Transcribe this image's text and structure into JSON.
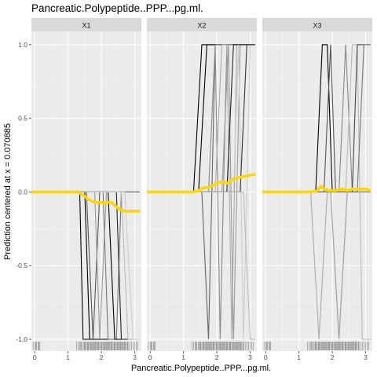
{
  "chart_data": {
    "type": "line",
    "title": "Pancreatic.Polypeptide..PPP...pg.ml.",
    "xlabel": "Pancreatic.Polypeptide..PPP...pg.ml.",
    "ylabel": "Prediction centered at x = 0.070885",
    "xlim": [
      -0.1,
      3.2
    ],
    "ylim": [
      -1.08,
      1.09
    ],
    "x_ticks": [
      0,
      1,
      2,
      3
    ],
    "y_ticks": [
      1.0,
      0.5,
      0.0,
      -0.5,
      -1.0
    ],
    "y_tick_labels": [
      "1.0",
      "0.5",
      "0.0",
      "-0.5",
      "-1.0"
    ],
    "grid": true,
    "panels": [
      {
        "label": "X1",
        "ice_lines": [
          {
            "points": [
              [
                -0.1,
                0
              ],
              [
                1.35,
                0
              ],
              [
                1.45,
                -1
              ],
              [
                3.15,
                -1
              ]
            ],
            "shade": "#000000"
          },
          {
            "points": [
              [
                -0.1,
                0
              ],
              [
                1.5,
                0
              ],
              [
                1.65,
                -1
              ],
              [
                3.15,
                -1
              ]
            ],
            "shade": "#000000"
          },
          {
            "points": [
              [
                -0.1,
                0
              ],
              [
                1.55,
                0
              ],
              [
                1.75,
                -1
              ],
              [
                1.95,
                0
              ],
              [
                3.15,
                0
              ]
            ],
            "shade": "#555555"
          },
          {
            "points": [
              [
                -0.1,
                0
              ],
              [
                1.8,
                0
              ],
              [
                1.95,
                -1
              ],
              [
                2.15,
                0
              ],
              [
                3.15,
                0
              ]
            ],
            "shade": "#999999"
          },
          {
            "points": [
              [
                -0.1,
                0
              ],
              [
                2.05,
                0
              ],
              [
                2.2,
                -1
              ],
              [
                2.45,
                -1
              ],
              [
                2.6,
                0
              ],
              [
                3.15,
                0
              ]
            ],
            "shade": "#777777"
          },
          {
            "points": [
              [
                -0.1,
                0
              ],
              [
                2.2,
                0
              ],
              [
                2.4,
                -1
              ],
              [
                3.15,
                -1
              ]
            ],
            "shade": "#000000"
          },
          {
            "points": [
              [
                -0.1,
                0
              ],
              [
                2.45,
                0
              ],
              [
                2.6,
                -1
              ],
              [
                3.15,
                -1
              ]
            ],
            "shade": "#222222"
          },
          {
            "points": [
              [
                -0.1,
                0
              ],
              [
                2.6,
                0
              ],
              [
                2.8,
                -1
              ],
              [
                3.15,
                -1
              ]
            ],
            "shade": "#bbbbbb"
          },
          {
            "points": [
              [
                -0.1,
                0
              ],
              [
                2.7,
                0
              ],
              [
                2.95,
                -1
              ],
              [
                3.15,
                -1
              ]
            ],
            "shade": "#cccccc"
          }
        ],
        "pdp": [
          [
            -0.1,
            0
          ],
          [
            1.3,
            0
          ],
          [
            1.45,
            -0.02
          ],
          [
            1.6,
            -0.05
          ],
          [
            1.8,
            -0.07
          ],
          [
            2.0,
            -0.07
          ],
          [
            2.1,
            -0.08
          ],
          [
            2.2,
            -0.07
          ],
          [
            2.3,
            -0.07
          ],
          [
            2.4,
            -0.09
          ],
          [
            2.55,
            -0.12
          ],
          [
            2.7,
            -0.13
          ],
          [
            3.15,
            -0.13
          ]
        ]
      },
      {
        "label": "X2",
        "ice_lines": [
          {
            "points": [
              [
                -0.1,
                0
              ],
              [
                1.3,
                0
              ],
              [
                1.55,
                1
              ],
              [
                3.15,
                1
              ]
            ],
            "shade": "#000000"
          },
          {
            "points": [
              [
                -0.1,
                0
              ],
              [
                1.45,
                0
              ],
              [
                1.7,
                1
              ],
              [
                3.15,
                1
              ]
            ],
            "shade": "#000000"
          },
          {
            "points": [
              [
                -0.1,
                0
              ],
              [
                1.55,
                0
              ],
              [
                1.75,
                -1
              ],
              [
                1.95,
                1
              ],
              [
                3.15,
                1
              ]
            ],
            "shade": "#666666"
          },
          {
            "points": [
              [
                -0.1,
                0
              ],
              [
                1.75,
                0
              ],
              [
                1.95,
                1
              ],
              [
                2.1,
                -1
              ],
              [
                2.3,
                1
              ],
              [
                3.15,
                1
              ]
            ],
            "shade": "#888888"
          },
          {
            "points": [
              [
                -0.1,
                0
              ],
              [
                1.95,
                0
              ],
              [
                2.15,
                1
              ],
              [
                2.3,
                1
              ],
              [
                2.45,
                -1
              ],
              [
                2.6,
                1
              ],
              [
                3.15,
                1
              ]
            ],
            "shade": "#aaaaaa"
          },
          {
            "points": [
              [
                -0.1,
                0
              ],
              [
                2.15,
                0
              ],
              [
                2.35,
                1
              ],
              [
                2.5,
                -1
              ],
              [
                2.7,
                1
              ],
              [
                3.15,
                1
              ]
            ],
            "shade": "#999999"
          },
          {
            "points": [
              [
                -0.1,
                0
              ],
              [
                2.3,
                0
              ],
              [
                2.5,
                1
              ],
              [
                3.15,
                1
              ]
            ],
            "shade": "#222222"
          },
          {
            "points": [
              [
                -0.1,
                0
              ],
              [
                2.5,
                0
              ],
              [
                2.65,
                1
              ],
              [
                2.8,
                -1
              ],
              [
                3.0,
                1
              ],
              [
                3.15,
                1
              ]
            ],
            "shade": "#cccccc"
          },
          {
            "points": [
              [
                -0.1,
                0
              ],
              [
                2.7,
                0
              ],
              [
                2.9,
                1
              ],
              [
                3.15,
                1
              ]
            ],
            "shade": "#333333"
          },
          {
            "points": [
              [
                -0.1,
                0
              ],
              [
                2.8,
                0
              ],
              [
                3.0,
                -1
              ],
              [
                3.15,
                -1
              ]
            ],
            "shade": "#bbbbbb"
          }
        ],
        "pdp": [
          [
            -0.1,
            0
          ],
          [
            1.3,
            0
          ],
          [
            1.45,
            0.01
          ],
          [
            1.6,
            0.03
          ],
          [
            1.75,
            0.03
          ],
          [
            1.85,
            0.04
          ],
          [
            2.0,
            0.06
          ],
          [
            2.15,
            0.07
          ],
          [
            2.3,
            0.06
          ],
          [
            2.4,
            0.07
          ],
          [
            2.5,
            0.09
          ],
          [
            2.7,
            0.1
          ],
          [
            2.9,
            0.11
          ],
          [
            3.15,
            0.12
          ]
        ]
      },
      {
        "label": "X3",
        "ice_lines": [
          {
            "points": [
              [
                -0.1,
                0
              ],
              [
                1.35,
                0
              ],
              [
                1.6,
                -1
              ],
              [
                1.85,
                0
              ],
              [
                3.15,
                0
              ]
            ],
            "shade": "#aaaaaa"
          },
          {
            "points": [
              [
                -0.1,
                0
              ],
              [
                1.5,
                0
              ],
              [
                1.7,
                1
              ],
              [
                1.85,
                1
              ],
              [
                2.0,
                0
              ],
              [
                3.15,
                0
              ]
            ],
            "shade": "#000000"
          },
          {
            "points": [
              [
                -0.1,
                0
              ],
              [
                1.75,
                0
              ],
              [
                1.95,
                1
              ],
              [
                2.1,
                0
              ],
              [
                3.15,
                0
              ]
            ],
            "shade": "#555555"
          },
          {
            "points": [
              [
                -0.1,
                0
              ],
              [
                1.95,
                0
              ],
              [
                2.2,
                -1
              ],
              [
                2.45,
                0
              ],
              [
                3.15,
                0
              ]
            ],
            "shade": "#999999"
          },
          {
            "points": [
              [
                -0.1,
                0
              ],
              [
                2.2,
                0
              ],
              [
                2.4,
                1
              ],
              [
                2.6,
                0
              ],
              [
                3.15,
                0
              ]
            ],
            "shade": "#888888"
          },
          {
            "points": [
              [
                -0.1,
                0
              ],
              [
                2.4,
                0
              ],
              [
                2.6,
                1
              ],
              [
                2.75,
                1
              ],
              [
                2.9,
                -1
              ],
              [
                3.15,
                -1
              ]
            ],
            "shade": "#bbbbbb"
          },
          {
            "points": [
              [
                -0.1,
                0
              ],
              [
                2.6,
                0
              ],
              [
                2.75,
                1
              ],
              [
                3.15,
                1
              ]
            ],
            "shade": "#444444"
          },
          {
            "points": [
              [
                -0.1,
                0
              ],
              [
                2.75,
                0
              ],
              [
                2.95,
                1
              ],
              [
                3.15,
                1
              ]
            ],
            "shade": "#777777"
          }
        ],
        "pdp": [
          [
            -0.1,
            0
          ],
          [
            1.3,
            0
          ],
          [
            1.45,
            0.005
          ],
          [
            1.55,
            0.01
          ],
          [
            1.65,
            0.04
          ],
          [
            1.75,
            0.02
          ],
          [
            1.9,
            0.01
          ],
          [
            2.1,
            0.01
          ],
          [
            2.3,
            0.02
          ],
          [
            2.45,
            0.01
          ],
          [
            2.6,
            0.02
          ],
          [
            2.8,
            0.02
          ],
          [
            3.0,
            0.02
          ],
          [
            3.15,
            0.01
          ]
        ]
      }
    ],
    "rug": [
      -0.05,
      0.0,
      0.03,
      0.05,
      0.1,
      0.12,
      0.15,
      1.25,
      1.3,
      1.35,
      1.38,
      1.4,
      1.45,
      1.48,
      1.5,
      1.52,
      1.55,
      1.58,
      1.6,
      1.62,
      1.65,
      1.68,
      1.7,
      1.72,
      1.75,
      1.78,
      1.8,
      1.82,
      1.85,
      1.88,
      1.9,
      1.92,
      1.95,
      1.98,
      2.0,
      2.02,
      2.05,
      2.08,
      2.1,
      2.12,
      2.15,
      2.18,
      2.2,
      2.22,
      2.25,
      2.28,
      2.3,
      2.32,
      2.35,
      2.38,
      2.4,
      2.42,
      2.45,
      2.48,
      2.5,
      2.52,
      2.55,
      2.58,
      2.6,
      2.62,
      2.65,
      2.68,
      2.7,
      2.72,
      2.75,
      2.78,
      2.8,
      2.85,
      2.9,
      2.95,
      3.0,
      3.05,
      3.1
    ],
    "colors": {
      "panel_bg": "#EBEBEB",
      "strip_bg": "#D9D9D9",
      "grid_major": "#FFFFFF",
      "pdp_line": "#FFD700",
      "text": "#000000",
      "tick_text": "#4D4D4D"
    }
  }
}
